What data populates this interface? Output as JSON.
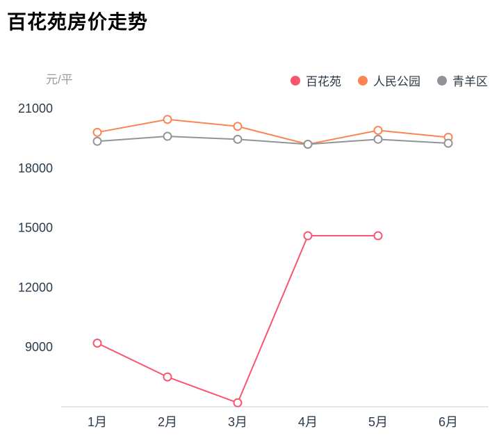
{
  "title": "百花苑房价走势",
  "chart_data": {
    "type": "line",
    "unit_label": "元/平",
    "categories": [
      "1月",
      "2月",
      "3月",
      "4月",
      "5月",
      "6月"
    ],
    "series": [
      {
        "name": "百花苑",
        "color": "#fa546f",
        "values": [
          9200,
          7500,
          6200,
          14600,
          14600,
          null
        ]
      },
      {
        "name": "人民公园",
        "color": "#fc8452",
        "values": [
          19800,
          20450,
          20100,
          19200,
          19900,
          19550
        ]
      },
      {
        "name": "青羊区",
        "color": "#909499",
        "values": [
          19350,
          19600,
          19450,
          19200,
          19450,
          19250
        ]
      }
    ],
    "yticks": [
      9000,
      12000,
      15000,
      18000,
      21000
    ],
    "ylim": [
      6000,
      21000
    ],
    "grid": false,
    "legend_position": "top-right",
    "marker_style": "hollow-circle",
    "axis_line_color": "#cccccc"
  }
}
